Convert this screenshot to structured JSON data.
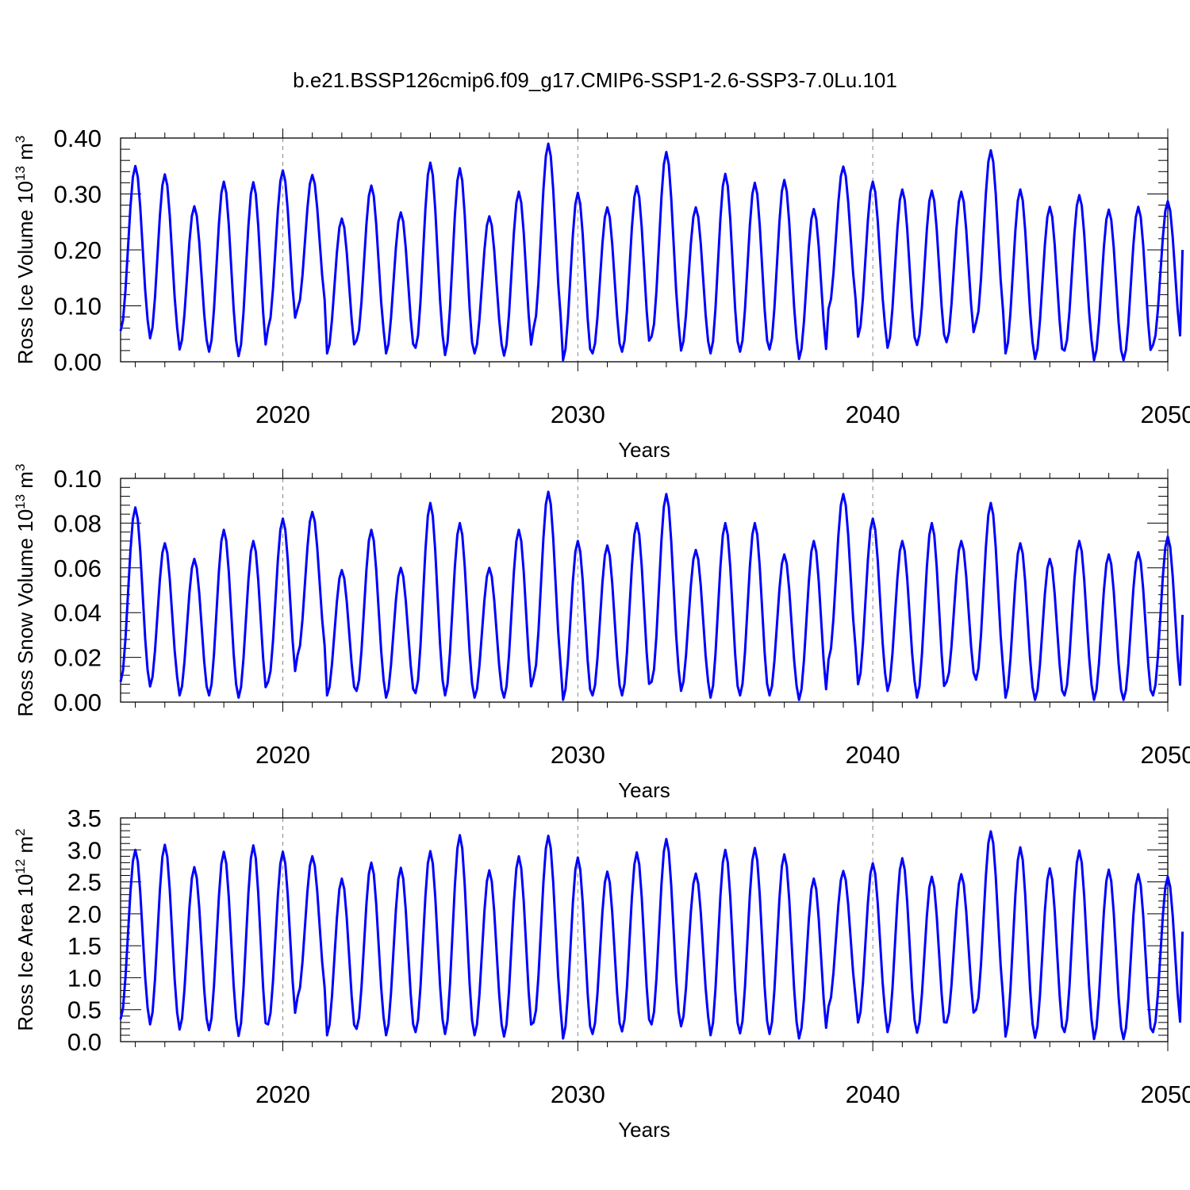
{
  "title": "b.e21.BSSP126cmip6.f09_g17.CMIP6-SSP1-2.6-SSP3-7.0Lu.101",
  "colors": {
    "series": "#0000ff",
    "axis": "#000000",
    "refline": "#888888"
  },
  "chart_data": [
    {
      "type": "line",
      "ylabel": "Ross Ice Volume 10",
      "ylabel_exp": "13",
      "ylabel_unit": " m",
      "ylabel_unit_exp": "3",
      "xlabel": "Years",
      "xlim": [
        2014.5,
        2050
      ],
      "ylim": [
        0.0,
        0.4
      ],
      "x_ticks": [
        2020,
        2030,
        2040,
        2050
      ],
      "x_tick_labels": [
        "2020",
        "2030",
        "2040",
        "2050"
      ],
      "y_ticks": [
        0.0,
        0.1,
        0.2,
        0.3,
        0.4
      ],
      "y_tick_labels": [
        "0.00",
        "0.10",
        "0.20",
        "0.30",
        "0.40"
      ],
      "ref_lines_x": [
        2020,
        2030,
        2040
      ],
      "grid": false,
      "series": [
        {
          "start_year": 2014.5,
          "months_per_year": 12,
          "peaks": [
            0.35,
            0.335,
            0.278,
            0.322,
            0.321,
            0.342,
            0.334,
            0.256,
            0.315,
            0.267,
            0.356,
            0.346,
            0.26,
            0.304,
            0.39,
            0.302,
            0.276,
            0.314,
            0.375,
            0.276,
            0.336,
            0.32,
            0.325,
            0.273,
            0.349,
            0.322,
            0.308,
            0.306,
            0.304,
            0.378,
            0.308,
            0.277,
            0.298,
            0.272,
            0.277,
            0.287
          ],
          "troughs": [
            0.055,
            0.042,
            0.022,
            0.018,
            0.01,
            0.06,
            0.095,
            0.015,
            0.038,
            0.015,
            0.025,
            0.012,
            0.015,
            0.011,
            0.06,
            0.003,
            0.015,
            0.018,
            0.045,
            0.02,
            0.015,
            0.018,
            0.022,
            0.005,
            0.095,
            0.045,
            0.025,
            0.03,
            0.035,
            0.07,
            0.015,
            0.005,
            0.02,
            0.003,
            0.003,
            0.03
          ],
          "end_value": 0.2
        }
      ]
    },
    {
      "type": "line",
      "ylabel": "Ross Snow Volume 10",
      "ylabel_exp": "13",
      "ylabel_unit": " m",
      "ylabel_unit_exp": "3",
      "xlabel": "Years",
      "xlim": [
        2014.5,
        2050
      ],
      "ylim": [
        0.0,
        0.1
      ],
      "x_ticks": [
        2020,
        2030,
        2040,
        2050
      ],
      "x_tick_labels": [
        "2020",
        "2030",
        "2040",
        "2050"
      ],
      "y_ticks": [
        0.0,
        0.02,
        0.04,
        0.06,
        0.08,
        0.1
      ],
      "y_tick_labels": [
        "0.00",
        "0.02",
        "0.04",
        "0.06",
        "0.08",
        "0.10"
      ],
      "ref_lines_x": [
        2020,
        2030,
        2040
      ],
      "grid": false,
      "series": [
        {
          "start_year": 2014.5,
          "months_per_year": 12,
          "peaks": [
            0.087,
            0.071,
            0.064,
            0.077,
            0.072,
            0.082,
            0.085,
            0.059,
            0.077,
            0.06,
            0.089,
            0.08,
            0.06,
            0.077,
            0.094,
            0.072,
            0.07,
            0.08,
            0.093,
            0.068,
            0.08,
            0.08,
            0.066,
            0.072,
            0.093,
            0.082,
            0.072,
            0.08,
            0.072,
            0.089,
            0.071,
            0.064,
            0.072,
            0.066,
            0.067,
            0.074
          ],
          "troughs": [
            0.009,
            0.007,
            0.003,
            0.003,
            0.002,
            0.009,
            0.021,
            0.003,
            0.005,
            0.002,
            0.004,
            0.003,
            0.002,
            0.002,
            0.011,
            0.001,
            0.003,
            0.003,
            0.009,
            0.005,
            0.002,
            0.003,
            0.003,
            0.001,
            0.019,
            0.008,
            0.005,
            0.002,
            0.009,
            0.01,
            0.002,
            0.001,
            0.003,
            0.001,
            0.001,
            0.003
          ],
          "end_value": 0.039
        }
      ]
    },
    {
      "type": "line",
      "ylabel": "Ross Ice Area 10",
      "ylabel_exp": "12",
      "ylabel_unit": " m",
      "ylabel_unit_exp": "2",
      "xlabel": "Years",
      "xlim": [
        2014.5,
        2050
      ],
      "ylim": [
        0.0,
        3.5
      ],
      "x_ticks": [
        2020,
        2030,
        2040,
        2050
      ],
      "x_tick_labels": [
        "2020",
        "2030",
        "2040",
        "2050"
      ],
      "y_ticks": [
        0.0,
        0.5,
        1.0,
        1.5,
        2.0,
        2.5,
        3.0,
        3.5
      ],
      "y_tick_labels": [
        "0.0",
        "0.5",
        "1.0",
        "1.5",
        "2.0",
        "2.5",
        "3.0",
        "3.5"
      ],
      "ref_lines_x": [
        2020,
        2030,
        2040
      ],
      "grid": false,
      "series": [
        {
          "start_year": 2014.5,
          "months_per_year": 12,
          "peaks": [
            3.0,
            3.08,
            2.73,
            2.97,
            3.07,
            2.97,
            2.9,
            2.55,
            2.8,
            2.72,
            2.98,
            3.23,
            2.68,
            2.9,
            3.22,
            2.88,
            2.66,
            2.96,
            3.17,
            2.63,
            3.0,
            3.03,
            2.93,
            2.55,
            2.67,
            2.79,
            2.87,
            2.58,
            2.62,
            3.29,
            3.04,
            2.71,
            2.99,
            2.69,
            2.62,
            2.58
          ],
          "troughs": [
            0.35,
            0.27,
            0.19,
            0.18,
            0.09,
            0.27,
            0.7,
            0.1,
            0.2,
            0.1,
            0.15,
            0.12,
            0.1,
            0.08,
            0.3,
            0.05,
            0.12,
            0.16,
            0.27,
            0.24,
            0.1,
            0.13,
            0.12,
            0.05,
            0.55,
            0.3,
            0.15,
            0.14,
            0.3,
            0.5,
            0.08,
            0.06,
            0.15,
            0.04,
            0.04,
            0.15
          ],
          "end_value": 1.72
        }
      ]
    }
  ]
}
